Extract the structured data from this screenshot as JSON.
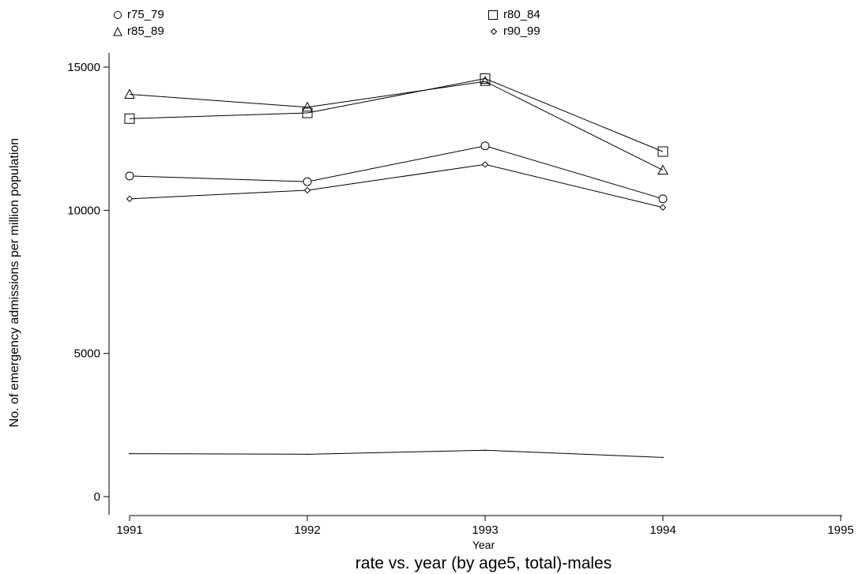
{
  "chart_data": {
    "type": "line",
    "title": "rate vs. year (by age5, total)-males",
    "xlabel": "Year",
    "ylabel": "No. of emergency admissions per million population",
    "x": [
      1991,
      1992,
      1993,
      1994
    ],
    "xticks": [
      "1991",
      "1992",
      "1993",
      "1994",
      "1995"
    ],
    "yticks": [
      "0",
      "5000",
      "10000",
      "15000"
    ],
    "xlim": [
      1991,
      1995
    ],
    "ylim": [
      0,
      15000
    ],
    "grid": false,
    "legend_position": "top",
    "series": [
      {
        "name": "r75_79",
        "marker": "circle",
        "values": [
          11200,
          11000,
          12250,
          10400
        ]
      },
      {
        "name": "r80_84",
        "marker": "square",
        "values": [
          13200,
          13400,
          14600,
          12050
        ]
      },
      {
        "name": "r85_89",
        "marker": "triangle",
        "values": [
          14050,
          13600,
          14500,
          11400
        ]
      },
      {
        "name": "r90_99",
        "marker": "diamond",
        "values": [
          10400,
          10700,
          11600,
          10100
        ]
      },
      {
        "marker": "none",
        "values": [
          1500,
          1480,
          1620,
          1370
        ]
      }
    ]
  },
  "colors": {
    "line": "#000000",
    "background": "#ffffff"
  }
}
